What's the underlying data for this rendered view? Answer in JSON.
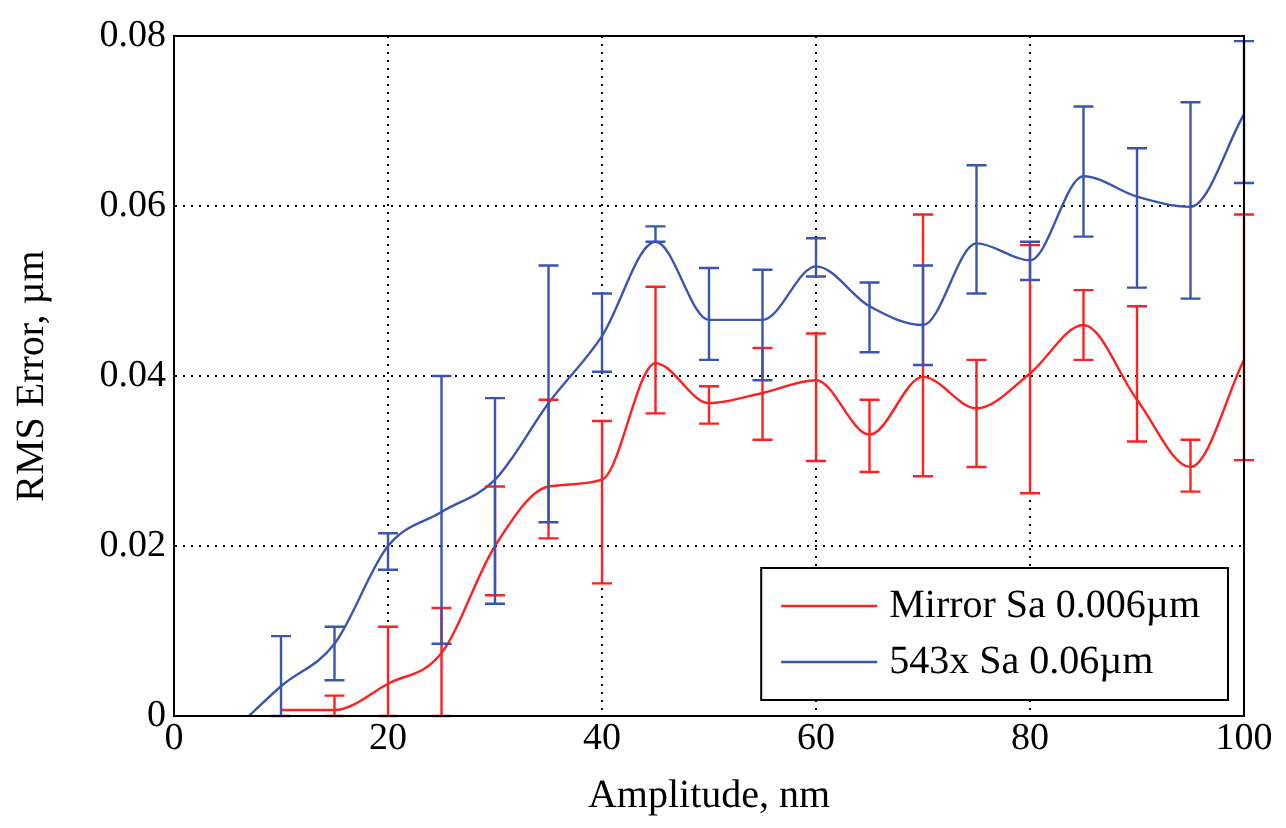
{
  "chart_data": {
    "type": "line",
    "xlabel": "Amplitude, nm",
    "ylabel": "RMS Error, µm",
    "xlim": [
      0,
      100
    ],
    "xticks": [
      0,
      20,
      40,
      60,
      80,
      100
    ],
    "ylim": [
      0,
      0.08
    ],
    "yticks": [
      0,
      0.02,
      0.04,
      0.06,
      0.08
    ],
    "grid": true,
    "legend": "bottom right",
    "marker": "none",
    "line_style": "solid",
    "series": [
      {
        "name": "Mirror Sa 0.006µm",
        "color": "#ff2020",
        "x": [
          10,
          15,
          20,
          25,
          30,
          35,
          40,
          45,
          50,
          55,
          60,
          65,
          70,
          75,
          80,
          85,
          90,
          95,
          100
        ],
        "values": [
          0.0007,
          0.0007,
          0.0038,
          0.0074,
          0.02,
          0.027,
          0.0278,
          0.0415,
          0.0368,
          0.038,
          0.0395,
          0.0331,
          0.0399,
          0.0362,
          0.0403,
          0.046,
          0.0372,
          0.0293,
          0.0419
        ],
        "errors": [
          null,
          [
            0,
            0.0024
          ],
          [
            0,
            0.0105
          ],
          [
            0,
            0.0127
          ],
          [
            0.0142,
            0.027
          ],
          [
            0.0209,
            0.0372
          ],
          [
            0.0156,
            0.0347
          ],
          [
            0.0356,
            0.0505
          ],
          [
            0.0344,
            0.0388
          ],
          [
            0.0325,
            0.0433
          ],
          [
            0.03,
            0.045
          ],
          [
            0.0287,
            0.0372
          ],
          [
            0.0282,
            0.059
          ],
          [
            0.0293,
            0.0419
          ],
          [
            0.0262,
            0.0554
          ],
          [
            0.0419,
            0.0501
          ],
          [
            0.0323,
            0.0482
          ],
          [
            0.0264,
            0.0325
          ],
          [
            0.0301,
            0.059
          ]
        ]
      },
      {
        "name": "543x Sa 0.06µm",
        "color": "#3a55b0",
        "x": [
          7,
          10,
          15,
          20,
          25,
          30,
          35,
          40,
          45,
          50,
          55,
          60,
          65,
          70,
          75,
          80,
          85,
          90,
          95,
          100
        ],
        "values": [
          0,
          0.0035,
          0.0085,
          0.02,
          0.024,
          0.0278,
          0.0368,
          0.0447,
          0.0558,
          0.0466,
          0.0466,
          0.0529,
          0.0482,
          0.046,
          0.0556,
          0.0536,
          0.0635,
          0.0611,
          0.0599,
          0.0708
        ],
        "errors": [
          null,
          [
            0,
            0.0094
          ],
          [
            0.0042,
            0.0105
          ],
          [
            0.0172,
            0.0215
          ],
          [
            0.0085,
            0.04
          ],
          [
            0.0132,
            0.0374
          ],
          [
            0.0228,
            0.053
          ],
          [
            0.0405,
            0.0497
          ],
          [
            0.0558,
            0.0576
          ],
          [
            0.0419,
            0.0527
          ],
          [
            0.0395,
            0.0525
          ],
          [
            0.0517,
            0.0562
          ],
          [
            0.0428,
            0.051
          ],
          [
            0.0413,
            0.053
          ],
          [
            0.0497,
            0.0648
          ],
          [
            0.0513,
            0.0558
          ],
          [
            0.0564,
            0.0717
          ],
          [
            0.0504,
            0.0668
          ],
          [
            0.0491,
            0.0722
          ],
          [
            0.0627,
            0.0794
          ]
        ]
      }
    ]
  }
}
